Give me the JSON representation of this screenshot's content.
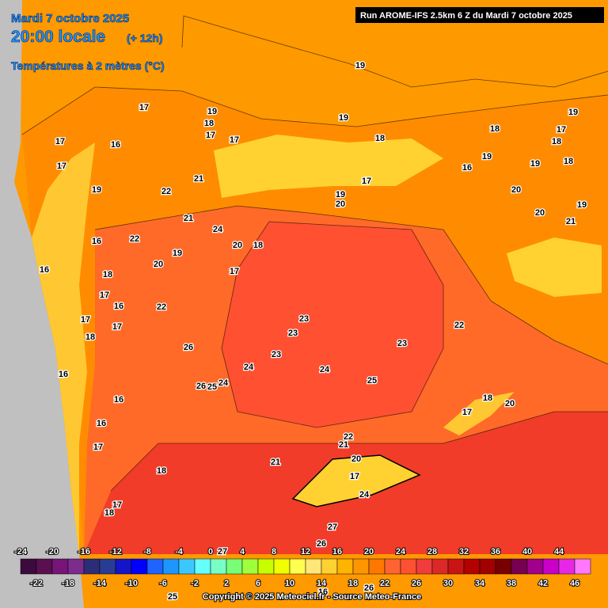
{
  "header": {
    "date": "Mardi 7 octobre 2025",
    "time": "20:00 locale",
    "offset": "(+ 12h)",
    "parameter": "Températures à 2 mètres (°C)",
    "run": "Run AROME-IFS 2.5km 6 Z du Mardi 7 octobre 2025"
  },
  "map_labels": [
    19,
    17,
    19,
    18,
    17,
    17,
    17,
    16,
    17,
    19,
    18,
    17,
    19,
    18,
    18,
    16,
    19,
    19,
    18,
    19,
    22,
    21,
    19,
    20,
    17,
    20,
    20,
    19,
    21,
    21,
    24,
    22,
    16,
    16,
    19,
    20,
    20,
    18,
    17,
    18,
    17,
    16,
    22,
    17,
    17,
    18,
    26,
    23,
    23,
    23,
    22,
    23,
    24,
    24,
    25,
    26,
    25,
    24,
    16,
    16,
    16,
    17,
    18,
    20,
    17,
    22,
    21,
    21,
    20,
    18,
    17,
    24,
    27,
    26,
    27,
    17,
    18,
    25,
    26,
    16
  ],
  "scale": {
    "top_labels": [
      -24,
      -20,
      -16,
      -12,
      -8,
      -4,
      0,
      4,
      8,
      12,
      16,
      20,
      24,
      28,
      32,
      36,
      40,
      44
    ],
    "bottom_labels": [
      -22,
      -18,
      -14,
      -10,
      -6,
      -2,
      2,
      6,
      10,
      14,
      18,
      22,
      26,
      30,
      34,
      38,
      42,
      46
    ],
    "colors": [
      "#3c0a3c",
      "#5a1050",
      "#781478",
      "#7c2c8c",
      "#2c2c78",
      "#283c96",
      "#1414c8",
      "#0000ff",
      "#1e64ff",
      "#1e96ff",
      "#3cc8ff",
      "#64ffff",
      "#78ffc8",
      "#78ff78",
      "#a0ff3c",
      "#c8ff00",
      "#f0ff00",
      "#ffff50",
      "#ffe678",
      "#ffd232",
      "#ffb400",
      "#ff9600",
      "#ff7800",
      "#ff6432",
      "#ff5032",
      "#f03c3c",
      "#dc2828",
      "#c81414",
      "#b40000",
      "#a00000",
      "#780000",
      "#780050",
      "#a0008c",
      "#c800c8",
      "#e628e6",
      "#ff78ff"
    ]
  },
  "copyright": "Copyright © 2025 Meteociel.fr - Source Meteo-France"
}
